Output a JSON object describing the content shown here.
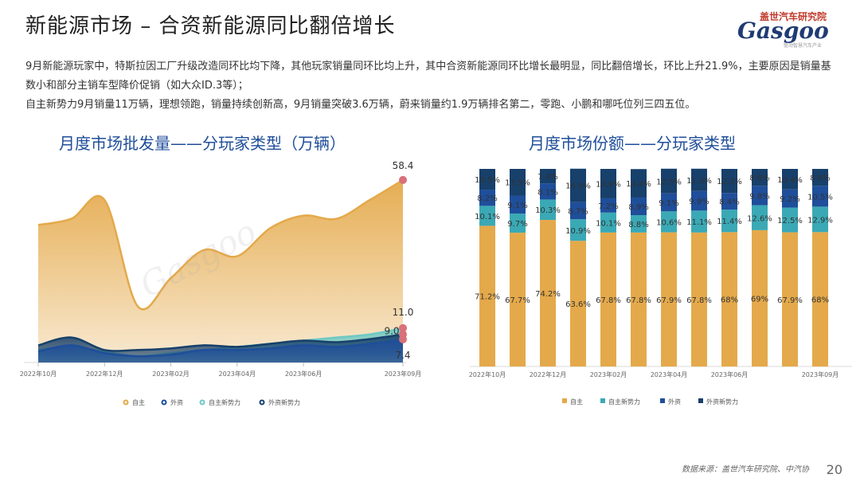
{
  "header": {
    "title": "新能源市场 – 合资新能源同比翻倍增长",
    "logo_brand": "盖世汽车研究院",
    "logo_word": "Gasgoo",
    "logo_tag": "驱动智慧汽车产业"
  },
  "summary": {
    "line1": "9月新能源玩家中，特斯拉因工厂升级改造同环比均下降，其他玩家销量同环比均上升，其中合资新能源同环比增长最明显，同比翻倍增长，环比上升21.9%，主要原因是销量基数小和部分主销车型降价促销（如大众ID.3等）；",
    "line2": "自主新势力9月销量11万辆，理想领跑，销量持续创新高，9月销量突破3.6万辆，蔚来销量约1.9万辆排名第二，零跑、小鹏和哪吒位列三四五位。"
  },
  "footer": {
    "source": "数据来源：盖世汽车研究院、中汽协",
    "page": "20"
  },
  "chart_data": [
    {
      "type": "area",
      "title": "月度市场批发量——分玩家类型（万辆）",
      "x": [
        "2022年10月",
        "2022年11月",
        "2022年12月",
        "2023年01月",
        "2023年02月",
        "2023年03月",
        "2023年04月",
        "2023年05月",
        "2023年06月",
        "2023年07月",
        "2023年08月",
        "2023年09月"
      ],
      "x_tick_labels": [
        "2022年10月",
        "2022年12月",
        "2023年02月",
        "2023年04月",
        "2023年06月",
        "2023年09月"
      ],
      "series": [
        {
          "name": "自主",
          "color": "#e4a94a",
          "values": [
            44,
            46,
            52,
            18,
            27,
            36,
            34,
            43,
            47,
            46,
            52,
            58.4
          ]
        },
        {
          "name": "外资",
          "color": "#1f4e9a",
          "values": [
            3.5,
            5.5,
            3,
            2,
            2.5,
            4,
            4,
            4.5,
            5.5,
            5,
            6,
            7.4
          ]
        },
        {
          "name": "自主新势力",
          "color": "#6ec9c5",
          "values": [
            4,
            5,
            3.5,
            2,
            3,
            4,
            5,
            6,
            7,
            8,
            9,
            11.0
          ]
        },
        {
          "name": "外资新势力",
          "color": "#17406b",
          "values": [
            5.5,
            8,
            4,
            4,
            4.5,
            5.5,
            5,
            6,
            7,
            6.5,
            7.5,
            9.0
          ]
        }
      ],
      "end_labels": [
        "58.4",
        "11.0",
        "9.0",
        "7.4"
      ],
      "ylim": [
        0,
        65
      ],
      "legend": "bottom"
    },
    {
      "type": "bar",
      "title": "月度市场份额——分玩家类型",
      "categories": [
        "2022年10月",
        "2022年11月",
        "2022年12月",
        "2023年01月",
        "2023年02月",
        "2023年03月",
        "2023年04月",
        "2023年05月",
        "2023年06月",
        "2023年07月",
        "2023年08月",
        "2023年09月"
      ],
      "x_tick_labels": [
        "2022年10月",
        "2022年12月",
        "2023年02月",
        "2023年04月",
        "2023年06月",
        "2023年09月"
      ],
      "series": [
        {
          "name": "自主",
          "color": "#e4a94a",
          "values": [
            71.2,
            67.7,
            74.2,
            63.6,
            67.8,
            67.8,
            67.9,
            67.8,
            68,
            69,
            67.9,
            68
          ],
          "labels": [
            "71.2%",
            "67.7%",
            "74.2%",
            "63.6%",
            "67.8%",
            "67.8%",
            "67.9%",
            "67.8%",
            "68%",
            "69%",
            "67.9%",
            "68%"
          ]
        },
        {
          "name": "自主新势力",
          "color": "#3aa9b5",
          "values": [
            10.1,
            9.7,
            10.3,
            10.9,
            10.1,
            8.8,
            10.6,
            11.1,
            11.4,
            12.6,
            12.5,
            12.9
          ],
          "labels": [
            "10.1%",
            "9.7%",
            "10.3%",
            "10.9%",
            "10.1%",
            "8.8%",
            "10.6%",
            "11.1%",
            "11.4%",
            "12.6%",
            "12.5%",
            "12.9%"
          ]
        },
        {
          "name": "外资",
          "color": "#1f4e9a",
          "values": [
            8.2,
            9.1,
            8.1,
            8.7,
            7.2,
            8.9,
            9.1,
            9.9,
            8.4,
            9.8,
            9.2,
            10.5
          ],
          "labels": [
            "8.2%",
            "9.1%",
            "8.1%",
            "8.7%",
            "7.2%",
            "8.9%",
            "9.1%",
            "9.9%",
            "8.4%",
            "9.8%",
            "9.2%",
            "10.5%"
          ]
        },
        {
          "name": "外资新势力",
          "color": "#17406b",
          "values": [
            10.5,
            13.5,
            7.4,
            16.9,
            14.9,
            14.4,
            12.5,
            11.3,
            12.2,
            8.6,
            10.4,
            8.6
          ],
          "labels": [
            "10.5%",
            "13.5%",
            "7.4%",
            "16.9%",
            "14.9%",
            "14.4%",
            "12.5%",
            "11.3%",
            "12.2%",
            "8.6%",
            "10.4%",
            "8.6%"
          ]
        }
      ],
      "ylim": [
        0,
        100
      ],
      "legend": "bottom"
    }
  ]
}
